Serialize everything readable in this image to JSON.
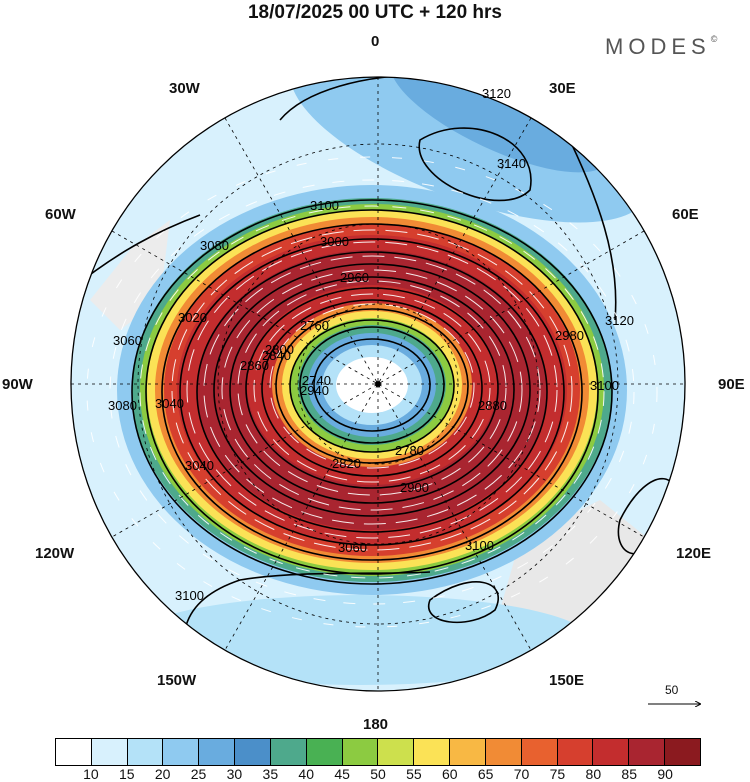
{
  "title": "18/07/2025  00 UTC  + 120 hrs",
  "brand": "MODES",
  "brand_mark": "©",
  "longitude_labels": {
    "top": "0",
    "top_left": "30W",
    "top_right": "30E",
    "upper_left": "60W",
    "upper_right": "60E",
    "left": "90W",
    "right": "90E",
    "lower_left": "120W",
    "lower_right": "120E",
    "bottom_left": "150W",
    "bottom_right": "150E",
    "bottom": "180"
  },
  "contour_labels": [
    "3120",
    "3140",
    "3100",
    "3080",
    "3060",
    "3040",
    "3020",
    "3000",
    "2980",
    "2960",
    "2940",
    "2900",
    "2880",
    "2860",
    "2840",
    "2820",
    "2800",
    "2780",
    "2760",
    "2740",
    "3060",
    "3040",
    "3080",
    "3100",
    "3100",
    "3100",
    "3120"
  ],
  "wind_reference": {
    "value": "50"
  },
  "legend": {
    "levels": [
      "10",
      "15",
      "20",
      "25",
      "30",
      "35",
      "40",
      "45",
      "50",
      "55",
      "60",
      "65",
      "70",
      "75",
      "80",
      "85",
      "90"
    ],
    "colors": [
      "#ffffff",
      "#d8f1fd",
      "#b4e2f8",
      "#8fcaf0",
      "#69acdf",
      "#4b8fc9",
      "#4ea98c",
      "#49b153",
      "#8ccb41",
      "#cde04d",
      "#fbe256",
      "#f8b844",
      "#f18b35",
      "#e8612f",
      "#d63f2e",
      "#c32d2e",
      "#a92530",
      "#8b1a1f"
    ]
  }
}
